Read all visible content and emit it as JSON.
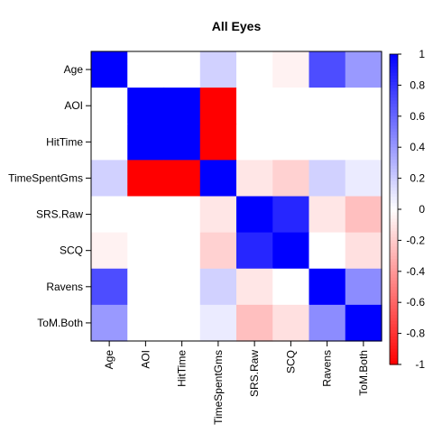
{
  "chart_data": {
    "type": "heatmap",
    "title": "All Eyes",
    "xlabel": "",
    "ylabel": "",
    "variables": [
      "Age",
      "AOI",
      "HitTime",
      "TimeSpentGms",
      "SRS.Raw",
      "SCQ",
      "Ravens",
      "ToM.Both"
    ],
    "matrix": [
      [
        1.0,
        0.0,
        0.0,
        0.18,
        0.0,
        -0.05,
        0.7,
        0.4
      ],
      [
        0.0,
        1.0,
        1.0,
        -1.0,
        0.0,
        0.0,
        0.0,
        0.0
      ],
      [
        0.0,
        1.0,
        1.0,
        -1.0,
        0.0,
        0.0,
        0.0,
        0.0
      ],
      [
        0.18,
        -1.0,
        -1.0,
        1.0,
        -0.1,
        -0.18,
        0.18,
        0.08
      ],
      [
        0.0,
        0.0,
        0.0,
        -0.1,
        1.0,
        0.85,
        -0.1,
        -0.25
      ],
      [
        -0.05,
        0.0,
        0.0,
        -0.18,
        0.85,
        1.0,
        0.0,
        -0.12
      ],
      [
        0.7,
        0.0,
        0.0,
        0.18,
        -0.1,
        0.0,
        1.0,
        0.45
      ],
      [
        0.4,
        0.0,
        0.0,
        0.08,
        -0.25,
        -0.12,
        0.45,
        1.0
      ]
    ],
    "colorbar": {
      "range": [
        -1,
        1
      ],
      "ticks": [
        1,
        0.8,
        0.6,
        0.4,
        0.2,
        0,
        -0.2,
        -0.4,
        -0.6,
        -0.8,
        -1
      ],
      "tick_labels": [
        "1",
        "0.8",
        "0.6",
        "0.4",
        "0.2",
        "0",
        "-0.2",
        "-0.4",
        "-0.6",
        "-0.8",
        "-1"
      ],
      "high_color": "#0000ff",
      "mid_color": "#ffffff",
      "low_color": "#ff0000"
    }
  }
}
